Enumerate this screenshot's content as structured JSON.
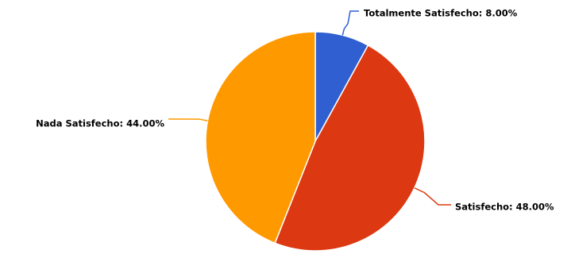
{
  "chart_data": {
    "type": "pie",
    "slices": [
      {
        "label": "Totalmente Satisfecho",
        "value": 8.0,
        "display": "Totalmente Satisfecho: 8.00%",
        "color": "#2f5fd0"
      },
      {
        "label": "Satisfecho",
        "value": 48.0,
        "display": "Satisfecho: 48.00%",
        "color": "#dc3912"
      },
      {
        "label": "Nada Satisfecho",
        "value": 44.0,
        "display": "Nada Satisfecho: 44.00%",
        "color": "#ff9900"
      }
    ],
    "start_position": "top",
    "direction": "clockwise",
    "legend": "none",
    "label_style": "outside-with-connectors"
  }
}
